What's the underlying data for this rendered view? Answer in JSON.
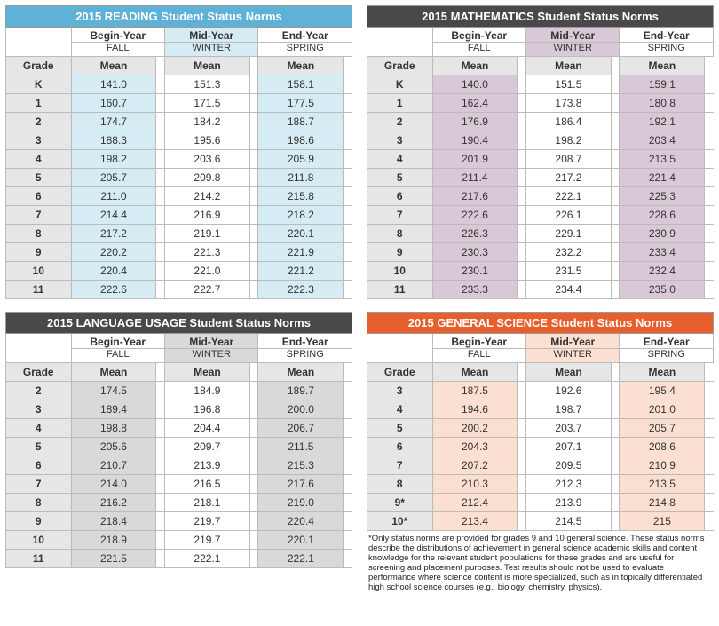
{
  "season_labels": {
    "begin": "Begin-Year",
    "begin_sub": "FALL",
    "mid": "Mid-Year",
    "mid_sub": "WINTER",
    "end": "End-Year",
    "end_sub": "SPRING"
  },
  "col_labels": {
    "grade": "Grade",
    "mean": "Mean"
  },
  "panels": [
    {
      "id": "reading",
      "title": "2015 READING Student Status Norms",
      "title_bg": "#5fb2d6",
      "highlight_bg": "#d5ecf5",
      "rows": [
        {
          "grade": "K",
          "b": "141.0",
          "m": "151.3",
          "e": "158.1"
        },
        {
          "grade": "1",
          "b": "160.7",
          "m": "171.5",
          "e": "177.5"
        },
        {
          "grade": "2",
          "b": "174.7",
          "m": "184.2",
          "e": "188.7"
        },
        {
          "grade": "3",
          "b": "188.3",
          "m": "195.6",
          "e": "198.6"
        },
        {
          "grade": "4",
          "b": "198.2",
          "m": "203.6",
          "e": "205.9"
        },
        {
          "grade": "5",
          "b": "205.7",
          "m": "209.8",
          "e": "211.8"
        },
        {
          "grade": "6",
          "b": "211.0",
          "m": "214.2",
          "e": "215.8"
        },
        {
          "grade": "7",
          "b": "214.4",
          "m": "216.9",
          "e": "218.2"
        },
        {
          "grade": "8",
          "b": "217.2",
          "m": "219.1",
          "e": "220.1"
        },
        {
          "grade": "9",
          "b": "220.2",
          "m": "221.3",
          "e": "221.9"
        },
        {
          "grade": "10",
          "b": "220.4",
          "m": "221.0",
          "e": "221.2"
        },
        {
          "grade": "11",
          "b": "222.6",
          "m": "222.7",
          "e": "222.3"
        }
      ]
    },
    {
      "id": "math",
      "title": "2015 MATHEMATICS Student Status Norms",
      "title_bg": "#494949",
      "highlight_bg": "#d9c9d6",
      "rows": [
        {
          "grade": "K",
          "b": "140.0",
          "m": "151.5",
          "e": "159.1"
        },
        {
          "grade": "1",
          "b": "162.4",
          "m": "173.8",
          "e": "180.8"
        },
        {
          "grade": "2",
          "b": "176.9",
          "m": "186.4",
          "e": "192.1"
        },
        {
          "grade": "3",
          "b": "190.4",
          "m": "198.2",
          "e": "203.4"
        },
        {
          "grade": "4",
          "b": "201.9",
          "m": "208.7",
          "e": "213.5"
        },
        {
          "grade": "5",
          "b": "211.4",
          "m": "217.2",
          "e": "221.4"
        },
        {
          "grade": "6",
          "b": "217.6",
          "m": "222.1",
          "e": "225.3"
        },
        {
          "grade": "7",
          "b": "222.6",
          "m": "226.1",
          "e": "228.6"
        },
        {
          "grade": "8",
          "b": "226.3",
          "m": "229.1",
          "e": "230.9"
        },
        {
          "grade": "9",
          "b": "230.3",
          "m": "232.2",
          "e": "233.4"
        },
        {
          "grade": "10",
          "b": "230.1",
          "m": "231.5",
          "e": "232.4"
        },
        {
          "grade": "11",
          "b": "233.3",
          "m": "234.4",
          "e": "235.0"
        }
      ]
    },
    {
      "id": "language",
      "title": "2015 LANGUAGE USAGE Student Status Norms",
      "title_bg": "#494949",
      "highlight_bg": "#d9d9d9",
      "rows": [
        {
          "grade": "2",
          "b": "174.5",
          "m": "184.9",
          "e": "189.7"
        },
        {
          "grade": "3",
          "b": "189.4",
          "m": "196.8",
          "e": "200.0"
        },
        {
          "grade": "4",
          "b": "198.8",
          "m": "204.4",
          "e": "206.7"
        },
        {
          "grade": "5",
          "b": "205.6",
          "m": "209.7",
          "e": "211.5"
        },
        {
          "grade": "6",
          "b": "210.7",
          "m": "213.9",
          "e": "215.3"
        },
        {
          "grade": "7",
          "b": "214.0",
          "m": "216.5",
          "e": "217.6"
        },
        {
          "grade": "8",
          "b": "216.2",
          "m": "218.1",
          "e": "219.0"
        },
        {
          "grade": "9",
          "b": "218.4",
          "m": "219.7",
          "e": "220.4"
        },
        {
          "grade": "10",
          "b": "218.9",
          "m": "219.7",
          "e": "220.1"
        },
        {
          "grade": "11",
          "b": "221.5",
          "m": "222.1",
          "e": "222.1"
        }
      ]
    },
    {
      "id": "science",
      "title": "2015 GENERAL SCIENCE Student Status Norms",
      "title_bg": "#e85f2e",
      "highlight_bg": "#fbe0d2",
      "rows": [
        {
          "grade": "3",
          "b": "187.5",
          "m": "192.6",
          "e": "195.4"
        },
        {
          "grade": "4",
          "b": "194.6",
          "m": "198.7",
          "e": "201.0"
        },
        {
          "grade": "5",
          "b": "200.2",
          "m": "203.7",
          "e": "205.7"
        },
        {
          "grade": "6",
          "b": "204.3",
          "m": "207.1",
          "e": "208.6"
        },
        {
          "grade": "7",
          "b": "207.2",
          "m": "209.5",
          "e": "210.9"
        },
        {
          "grade": "8",
          "b": "210.3",
          "m": "212.3",
          "e": "213.5"
        },
        {
          "grade": "9*",
          "b": "212.4",
          "m": "213.9",
          "e": "214.8"
        },
        {
          "grade": "10*",
          "b": "213.4",
          "m": "214.5",
          "e": "215"
        }
      ],
      "footnote": "*Only status norms are provided for grades 9 and 10 general science. These status norms describe the distributions of achievement in general science academic skills and content knowledge for the relevant student populations for these grades and are useful for screening and placement purposes. Test results should not be used to evaluate performance where science content is more specialized, such as in topically differentiated high school science courses (e.g., biology, chemistry, physics)."
    }
  ]
}
